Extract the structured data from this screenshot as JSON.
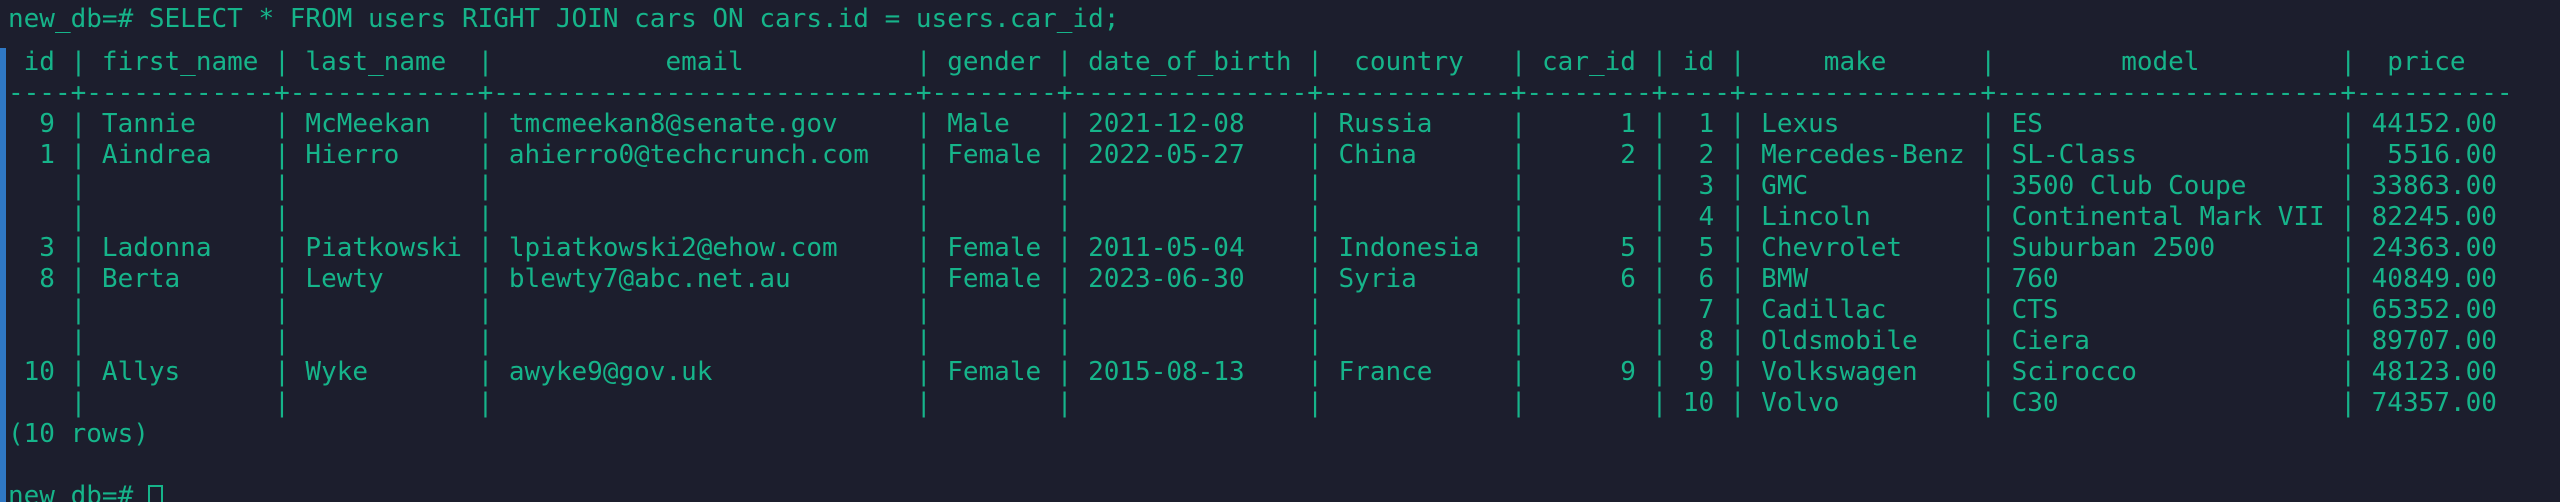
{
  "terminal": {
    "query": "new_db=# SELECT * FROM users RIGHT JOIN cars ON cars.id = users.car_id;",
    "header": " id | first_name | last_name  |           email           | gender | date_of_birth |  country   | car_id | id |     make      |        model         |  price",
    "separator": "----+------------+------------+---------------------------+--------+---------------+------------+--------+----+---------------+----------------------+----------",
    "rows": [
      "  9 | Tannie     | McMeekan   | tmcmeekan8@senate.gov     | Male   | 2021-12-08    | Russia     |      1 |  1 | Lexus         | ES                   | 44152.00",
      "  1 | Aindrea    | Hierro     | ahierro0@techcrunch.com   | Female | 2022-05-27    | China      |      2 |  2 | Mercedes-Benz | SL-Class             |  5516.00",
      "    |            |            |                           |        |               |            |        |  3 | GMC           | 3500 Club Coupe      | 33863.00",
      "    |            |            |                           |        |               |            |        |  4 | Lincoln       | Continental Mark VII | 82245.00",
      "  3 | Ladonna    | Piatkowski | lpiatkowski2@ehow.com     | Female | 2011-05-04    | Indonesia  |      5 |  5 | Chevrolet     | Suburban 2500        | 24363.00",
      "  8 | Berta      | Lewty      | blewty7@abc.net.au        | Female | 2023-06-30    | Syria      |      6 |  6 | BMW           | 760                  | 40849.00",
      "    |            |            |                           |        |               |            |        |  7 | Cadillac      | CTS                  | 65352.00",
      "    |            |            |                           |        |               |            |        |  8 | Oldsmobile    | Ciera                | 89707.00",
      " 10 | Allys      | Wyke       | awyke9@gov.uk             | Female | 2015-08-13    | France     |      9 |  9 | Volkswagen    | Scirocco             | 48123.00",
      "    |            |            |                           |        |               |            |        | 10 | Volvo         | C30                  | 74357.00"
    ],
    "row_count": "(10 rows)",
    "prompt": "new_db=# ",
    "text_color": "#16b48a",
    "background_color": "#1c1e2d",
    "accent_bar_color": "#2f78c4"
  }
}
